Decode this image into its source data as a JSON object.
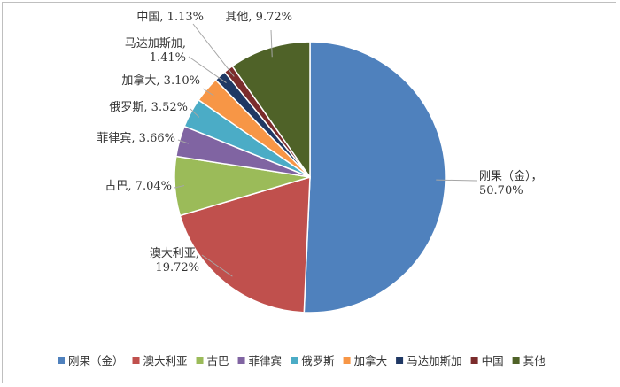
{
  "chart_data": {
    "type": "pie",
    "title": "",
    "unit": "%",
    "start_angle_deg": 0,
    "direction": "clockwise",
    "legend_position": "bottom",
    "slices": [
      {
        "name": "刚果（金）",
        "value": 50.7,
        "value_label": "50.70%",
        "color": "#4F81BD",
        "label_lines": [
          "刚果（金），",
          "50.70%"
        ]
      },
      {
        "name": "澳大利亚",
        "value": 19.72,
        "value_label": "19.72%",
        "color": "#C0504D",
        "label_lines": [
          "澳大利亚,",
          "19.72%"
        ]
      },
      {
        "name": "古巴",
        "value": 7.04,
        "value_label": "7.04%",
        "color": "#9BBB59",
        "label_lines": [
          "古巴, 7.04%"
        ]
      },
      {
        "name": "菲律宾",
        "value": 3.66,
        "value_label": "3.66%",
        "color": "#8064A2",
        "label_lines": [
          "菲律宾, 3.66%"
        ]
      },
      {
        "name": "俄罗斯",
        "value": 3.52,
        "value_label": "3.52%",
        "color": "#4BACC6",
        "label_lines": [
          "俄罗斯, 3.52%"
        ]
      },
      {
        "name": "加拿大",
        "value": 3.1,
        "value_label": "3.10%",
        "color": "#F79646",
        "label_lines": [
          "加拿大, 3.10%"
        ]
      },
      {
        "name": "马达加斯加",
        "value": 1.41,
        "value_label": "1.41%",
        "color": "#1F3864",
        "label_lines": [
          "马达加斯加,",
          "1.41%"
        ]
      },
      {
        "name": "中国",
        "value": 1.13,
        "value_label": "1.13%",
        "color": "#7B2C2C",
        "label_lines": [
          "中国, 1.13%"
        ]
      },
      {
        "name": "其他",
        "value": 9.72,
        "value_label": "9.72%",
        "color": "#4F6228",
        "label_lines": [
          "其他, 9.72%"
        ]
      }
    ]
  }
}
